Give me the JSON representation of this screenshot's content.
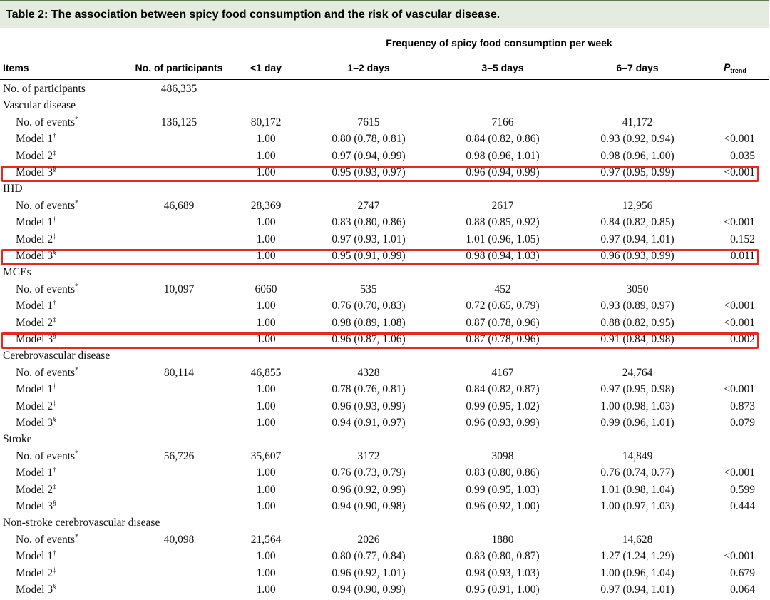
{
  "title": "Table 2: The association between spicy food consumption and the risk of vascular disease.",
  "header": {
    "group_label": "Frequency of spicy food consumption per week",
    "items_label": "Items",
    "participants_label": "No. of participants",
    "freq_cols": [
      "<1 day",
      "1–2 days",
      "3–5 days",
      "6–7 days"
    ],
    "ptrend_p": "P",
    "ptrend_sub": "trend"
  },
  "rows": [
    {
      "label": "No. of participants",
      "sup": "",
      "indent": false,
      "participants": "486,335",
      "v": [
        "",
        "",
        "",
        ""
      ],
      "p": "",
      "highlight": false
    },
    {
      "label": "Vascular disease",
      "sup": "",
      "indent": false,
      "participants": "",
      "v": [
        "",
        "",
        "",
        ""
      ],
      "p": "",
      "highlight": false
    },
    {
      "label": "No. of events",
      "sup": "*",
      "indent": true,
      "participants": "136,125",
      "v": [
        "80,172",
        "7615",
        "7166",
        "41,172"
      ],
      "p": "",
      "highlight": false
    },
    {
      "label": "Model 1",
      "sup": "†",
      "indent": true,
      "participants": "",
      "v": [
        "1.00",
        "0.80 (0.78, 0.81)",
        "0.84 (0.82, 0.86)",
        "0.93 (0.92, 0.94)"
      ],
      "p": "<0.001",
      "highlight": false
    },
    {
      "label": "Model 2",
      "sup": "‡",
      "indent": true,
      "participants": "",
      "v": [
        "1.00",
        "0.97 (0.94, 0.99)",
        "0.98 (0.96, 1.01)",
        "0.98 (0.96, 1.00)"
      ],
      "p": "0.035",
      "highlight": false
    },
    {
      "label": "Model 3",
      "sup": "§",
      "indent": true,
      "participants": "",
      "v": [
        "1.00",
        "0.95 (0.93, 0.97)",
        "0.96 (0.94, 0.99)",
        "0.97 (0.95, 0.99)"
      ],
      "p": "<0.001",
      "highlight": true
    },
    {
      "label": "IHD",
      "sup": "",
      "indent": false,
      "participants": "",
      "v": [
        "",
        "",
        "",
        ""
      ],
      "p": "",
      "highlight": false
    },
    {
      "label": "No. of events",
      "sup": "*",
      "indent": true,
      "participants": "46,689",
      "v": [
        "28,369",
        "2747",
        "2617",
        "12,956"
      ],
      "p": "",
      "highlight": false
    },
    {
      "label": "Model 1",
      "sup": "†",
      "indent": true,
      "participants": "",
      "v": [
        "1.00",
        "0.83 (0.80, 0.86)",
        "0.88 (0.85, 0.92)",
        "0.84 (0.82, 0.85)"
      ],
      "p": "<0.001",
      "highlight": false
    },
    {
      "label": "Model 2",
      "sup": "‡",
      "indent": true,
      "participants": "",
      "v": [
        "1.00",
        "0.97 (0.93, 1.01)",
        "1.01 (0.96, 1.05)",
        "0.97 (0.94, 1.01)"
      ],
      "p": "0.152",
      "highlight": false
    },
    {
      "label": "Model 3",
      "sup": "§",
      "indent": true,
      "participants": "",
      "v": [
        "1.00",
        "0.95 (0.91, 0.99)",
        "0.98 (0.94, 1.03)",
        "0.96 (0.93, 0.99)"
      ],
      "p": "0.011",
      "highlight": true
    },
    {
      "label": "MCEs",
      "sup": "",
      "indent": false,
      "participants": "",
      "v": [
        "",
        "",
        "",
        ""
      ],
      "p": "",
      "highlight": false
    },
    {
      "label": "No. of events",
      "sup": "*",
      "indent": true,
      "participants": "10,097",
      "v": [
        "6060",
        "535",
        "452",
        "3050"
      ],
      "p": "",
      "highlight": false
    },
    {
      "label": "Model 1",
      "sup": "†",
      "indent": true,
      "participants": "",
      "v": [
        "1.00",
        "0.76 (0.70, 0.83)",
        "0.72 (0.65, 0.79)",
        "0.93 (0.89, 0.97)"
      ],
      "p": "<0.001",
      "highlight": false
    },
    {
      "label": "Model 2",
      "sup": "‡",
      "indent": true,
      "participants": "",
      "v": [
        "1.00",
        "0.98 (0.89, 1.08)",
        "0.87 (0.78, 0.96)",
        "0.88 (0.82, 0.95)"
      ],
      "p": "<0.001",
      "highlight": false
    },
    {
      "label": "Model 3",
      "sup": "§",
      "indent": true,
      "participants": "",
      "v": [
        "1.00",
        "0.96 (0.87, 1.06)",
        "0.87 (0.78, 0.96)",
        "0.91 (0.84, 0.98)"
      ],
      "p": "0.002",
      "highlight": true
    },
    {
      "label": "Cerebrovascular disease",
      "sup": "",
      "indent": false,
      "participants": "",
      "v": [
        "",
        "",
        "",
        ""
      ],
      "p": "",
      "highlight": false
    },
    {
      "label": "No. of events",
      "sup": "*",
      "indent": true,
      "participants": "80,114",
      "v": [
        "46,855",
        "4328",
        "4167",
        "24,764"
      ],
      "p": "",
      "highlight": false
    },
    {
      "label": "Model 1",
      "sup": "†",
      "indent": true,
      "participants": "",
      "v": [
        "1.00",
        "0.78 (0.76, 0.81)",
        "0.84 (0.82, 0.87)",
        "0.97 (0.95, 0.98)"
      ],
      "p": "<0.001",
      "highlight": false
    },
    {
      "label": "Model 2",
      "sup": "‡",
      "indent": true,
      "participants": "",
      "v": [
        "1.00",
        "0.96 (0.93, 0.99)",
        "0.99 (0.95, 1.02)",
        "1.00 (0.98, 1.03)"
      ],
      "p": "0.873",
      "highlight": false
    },
    {
      "label": "Model 3",
      "sup": "§",
      "indent": true,
      "participants": "",
      "v": [
        "1.00",
        "0.94 (0.91, 0.97)",
        "0.96 (0.93, 0.99)",
        "0.99 (0.96, 1.01)"
      ],
      "p": "0.079",
      "highlight": false
    },
    {
      "label": "Stroke",
      "sup": "",
      "indent": false,
      "participants": "",
      "v": [
        "",
        "",
        "",
        ""
      ],
      "p": "",
      "highlight": false
    },
    {
      "label": "No. of events",
      "sup": "*",
      "indent": true,
      "participants": "56,726",
      "v": [
        "35,607",
        "3172",
        "3098",
        "14,849"
      ],
      "p": "",
      "highlight": false
    },
    {
      "label": "Model 1",
      "sup": "†",
      "indent": true,
      "participants": "",
      "v": [
        "1.00",
        "0.76 (0.73, 0.79)",
        "0.83 (0.80, 0.86)",
        "0.76 (0.74, 0.77)"
      ],
      "p": "<0.001",
      "highlight": false
    },
    {
      "label": "Model 2",
      "sup": "‡",
      "indent": true,
      "participants": "",
      "v": [
        "1.00",
        "0.96 (0.92, 0.99)",
        "0.99 (0.95, 1.03)",
        "1.01 (0.98, 1.04)"
      ],
      "p": "0.599",
      "highlight": false
    },
    {
      "label": "Model 3",
      "sup": "§",
      "indent": true,
      "participants": "",
      "v": [
        "1.00",
        "0.94 (0.90, 0.98)",
        "0.96 (0.92, 1.00)",
        "1.00 (0.97, 1.03)"
      ],
      "p": "0.444",
      "highlight": false
    },
    {
      "label": "Non-stroke cerebrovascular disease",
      "sup": "",
      "indent": false,
      "participants": "",
      "v": [
        "",
        "",
        "",
        ""
      ],
      "p": "",
      "highlight": false
    },
    {
      "label": "No. of events",
      "sup": "*",
      "indent": true,
      "participants": "40,098",
      "v": [
        "21,564",
        "2026",
        "1880",
        "14,628"
      ],
      "p": "",
      "highlight": false
    },
    {
      "label": "Model 1",
      "sup": "†",
      "indent": true,
      "participants": "",
      "v": [
        "1.00",
        "0.80 (0.77, 0.84)",
        "0.83 (0.80, 0.87)",
        "1.27 (1.24, 1.29)"
      ],
      "p": "<0.001",
      "highlight": false
    },
    {
      "label": "Model 2",
      "sup": "‡",
      "indent": true,
      "participants": "",
      "v": [
        "1.00",
        "0.96 (0.92, 1.01)",
        "0.98 (0.93, 1.03)",
        "1.00 (0.96, 1.04)"
      ],
      "p": "0.679",
      "highlight": false
    },
    {
      "label": "Model 3",
      "sup": "§",
      "indent": true,
      "participants": "",
      "v": [
        "1.00",
        "0.94 (0.90, 0.99)",
        "0.95 (0.91, 1.00)",
        "0.97 (0.94, 1.01)"
      ],
      "p": "0.064",
      "highlight": false
    }
  ]
}
